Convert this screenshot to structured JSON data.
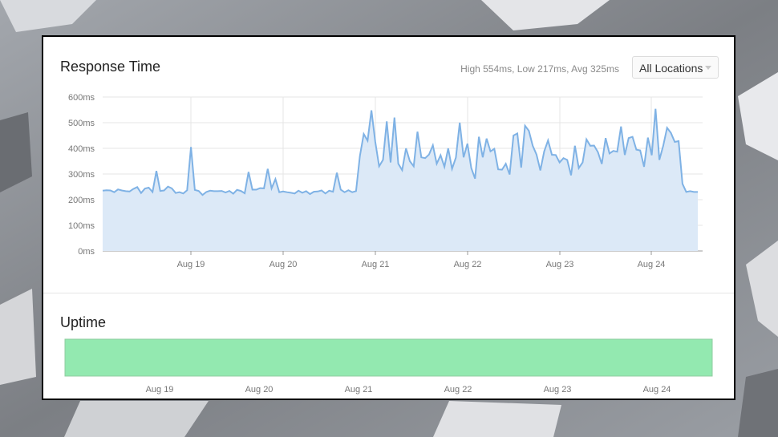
{
  "response_time": {
    "title": "Response Time",
    "stats": "High 554ms, Low 217ms, Avg 325ms",
    "location_selector": {
      "selected": "All Locations"
    }
  },
  "uptime": {
    "title": "Uptime",
    "status_color": "#93e9b0",
    "x_ticks": [
      "Aug 19",
      "Aug 20",
      "Aug 21",
      "Aug 22",
      "Aug 23",
      "Aug 24"
    ]
  },
  "colors": {
    "line": "#7fb2e5",
    "fill": "#dce9f7",
    "grid": "#e5e5e5"
  },
  "chart_data": [
    {
      "type": "area",
      "title": "Response Time",
      "y_unit": "ms",
      "y_ticks": [
        "600ms",
        "500ms",
        "400ms",
        "300ms",
        "200ms",
        "100ms",
        "0ms"
      ],
      "ylim": [
        0,
        600
      ],
      "x_ticks": [
        "Aug 19",
        "Aug 20",
        "Aug 21",
        "Aug 22",
        "Aug 23",
        "Aug 24"
      ],
      "grid": true,
      "series": [
        {
          "values": [
            235,
            237,
            236,
            229,
            240,
            236,
            233,
            232,
            242,
            249,
            226,
            243,
            247,
            230,
            312,
            234,
            236,
            251,
            244,
            226,
            229,
            224,
            237,
            405,
            238,
            234,
            218,
            230,
            235,
            233,
            233,
            234,
            228,
            234,
            223,
            238,
            234,
            225,
            308,
            239,
            239,
            245,
            244,
            320,
            244,
            280,
            229,
            232,
            229,
            227,
            224,
            235,
            227,
            233,
            222,
            231,
            232,
            236,
            224,
            235,
            231,
            305,
            239,
            229,
            237,
            229,
            233,
            370,
            456,
            430,
            548,
            425,
            330,
            355,
            505,
            345,
            520,
            340,
            315,
            400,
            350,
            330,
            465,
            365,
            362,
            376,
            412,
            340,
            373,
            328,
            400,
            320,
            364,
            500,
            365,
            418,
            323,
            282,
            445,
            365,
            438,
            388,
            398,
            318,
            317,
            340,
            298,
            450,
            458,
            325,
            488,
            468,
            410,
            376,
            314,
            388,
            431,
            375,
            374,
            345,
            362,
            355,
            295,
            410,
            323,
            345,
            435,
            410,
            411,
            385,
            339,
            440,
            380,
            390,
            387,
            485,
            374,
            440,
            445,
            395,
            392,
            328,
            442,
            373,
            554,
            355,
            410,
            480,
            460,
            425,
            428,
            262,
            230,
            233,
            230,
            230
          ]
        }
      ]
    },
    {
      "type": "bar",
      "title": "Uptime",
      "x_ticks": [
        "Aug 19",
        "Aug 20",
        "Aug 21",
        "Aug 22",
        "Aug 23",
        "Aug 24"
      ]
    }
  ]
}
